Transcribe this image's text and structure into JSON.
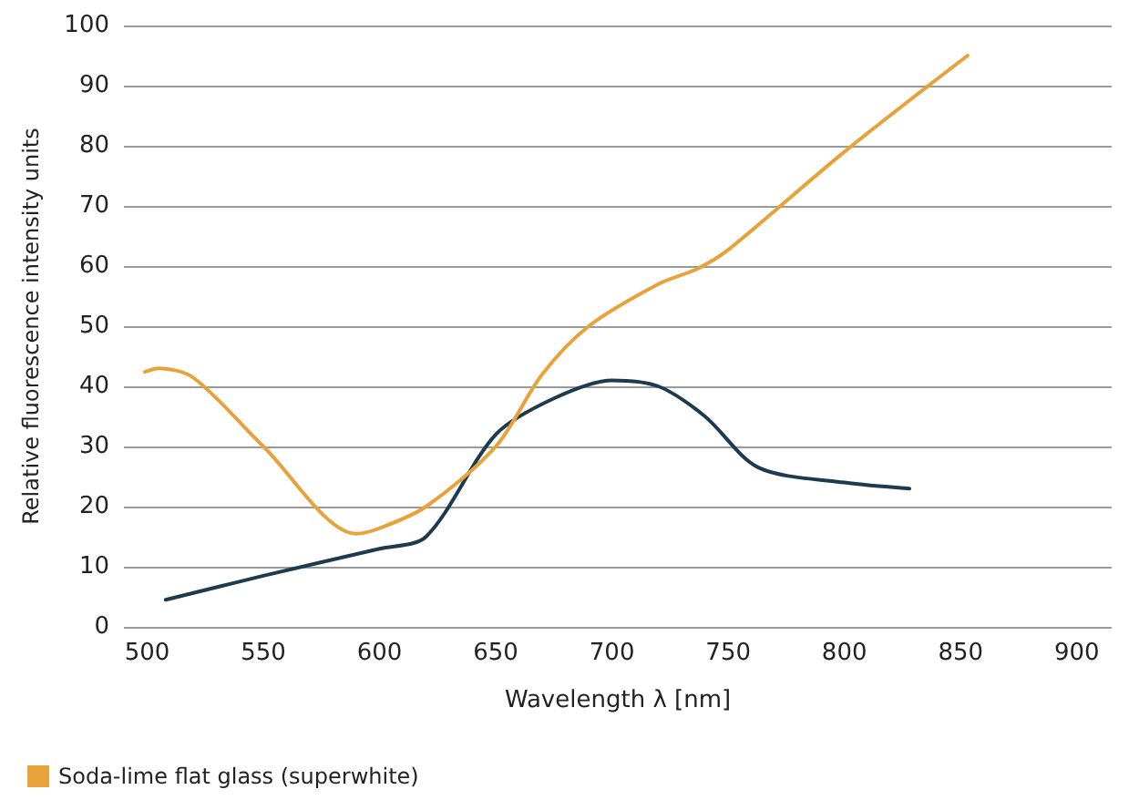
{
  "chart_data": {
    "type": "line",
    "xlabel": "Wavelength λ [nm]",
    "ylabel": "Relative fluorescence intensity units",
    "xlim": [
      490,
      915
    ],
    "xticks": [
      500,
      550,
      600,
      650,
      700,
      750,
      800,
      850,
      900
    ],
    "ylim": [
      0,
      100
    ],
    "yticks": [
      0,
      10,
      20,
      30,
      40,
      50,
      60,
      70,
      80,
      90,
      100
    ],
    "grid": "y",
    "legend": "bottom left",
    "marker": "none",
    "line_style": "solid",
    "series": [
      {
        "color": "#1e3a4f",
        "x": [
          508,
          550,
          600,
          620,
          650,
          675,
          700,
          720,
          740,
          763,
          800,
          828
        ],
        "values": [
          4.5,
          8.5,
          13,
          15,
          32,
          38,
          41,
          40,
          35,
          26.5,
          24,
          23
        ]
      },
      {
        "name": "Soda-lime flat glass (superwhite)",
        "color": "#e8a23a",
        "x": [
          499,
          505,
          520,
          550,
          590,
          600,
          620,
          650,
          670,
          690,
          720,
          737,
          750,
          800,
          853
        ],
        "values": [
          42.4,
          43,
          41.4,
          30,
          15.5,
          16.4,
          20,
          30,
          42,
          50,
          57,
          59.6,
          62.7,
          79,
          95
        ]
      }
    ]
  }
}
